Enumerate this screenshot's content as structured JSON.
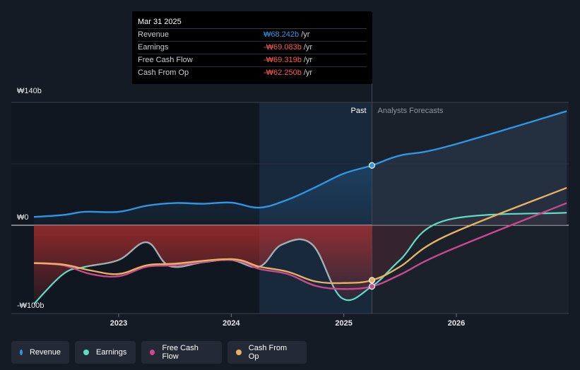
{
  "colors": {
    "revenue": "#2d96e6",
    "earnings": "#5fdcc6",
    "free_cash_flow": "#c84a8c",
    "cash_from_op": "#e8b063",
    "negative_value": "#ff5757",
    "revenue_value": "#2d96e6",
    "background": "#151b24"
  },
  "tooltip": {
    "date": "Mar 31 2025",
    "rows": [
      {
        "label": "Revenue",
        "value": "₩68.242b",
        "unit": "/yr",
        "series": "revenue"
      },
      {
        "label": "Earnings",
        "value": "-₩69.083b",
        "unit": "/yr",
        "series": "earnings"
      },
      {
        "label": "Free Cash Flow",
        "value": "-₩69.319b",
        "unit": "/yr",
        "series": "free_cash_flow"
      },
      {
        "label": "Cash From Op",
        "value": "-₩62.250b",
        "unit": "/yr",
        "series": "cash_from_op"
      }
    ]
  },
  "legend": {
    "items": [
      {
        "label": "Revenue",
        "series": "revenue"
      },
      {
        "label": "Earnings",
        "series": "earnings"
      },
      {
        "label": "Free Cash Flow",
        "series": "free_cash_flow"
      },
      {
        "label": "Cash From Op",
        "series": "cash_from_op"
      }
    ]
  },
  "chart_data": {
    "type": "line",
    "title": "",
    "xlabel": "",
    "ylabel": "",
    "y_tick_labels": [
      "₩140b",
      "₩0",
      "-₩100b"
    ],
    "y_ticks": [
      140,
      0,
      -100
    ],
    "ylim": [
      -100,
      140
    ],
    "xlim": [
      2022.2,
      2026.98
    ],
    "x_ticks": [
      2023,
      2024,
      2025,
      2026
    ],
    "x_tick_labels": [
      "2023",
      "2024",
      "2025",
      "2026"
    ],
    "past_label": "Past",
    "forecast_label": "Analysts Forecasts",
    "highlight_start": 2024.25,
    "divider_x": 2025.25,
    "series": [
      {
        "name": "Revenue",
        "key": "revenue",
        "points": [
          [
            2022.2,
            9.2
          ],
          [
            2022.5,
            11.6
          ],
          [
            2022.7,
            15.3
          ],
          [
            2023.0,
            15.3
          ],
          [
            2023.25,
            22.3
          ],
          [
            2023.5,
            25.3
          ],
          [
            2023.75,
            24.5
          ],
          [
            2024.0,
            25.8
          ],
          [
            2024.25,
            20.1
          ],
          [
            2024.5,
            29.1
          ],
          [
            2024.75,
            43.5
          ],
          [
            2025.0,
            58.9
          ],
          [
            2025.25,
            68.2
          ],
          [
            2025.5,
            79.5
          ],
          [
            2025.9,
            89.1
          ],
          [
            2026.98,
            130.0
          ]
        ]
      },
      {
        "name": "Earnings",
        "key": "earnings",
        "points": [
          [
            2022.2,
            -96.0
          ],
          [
            2022.5,
            -56.0
          ],
          [
            2022.7,
            -47.2
          ],
          [
            2023.0,
            -39.3
          ],
          [
            2023.25,
            -19.3
          ],
          [
            2023.45,
            -46.1
          ],
          [
            2023.75,
            -41.9
          ],
          [
            2024.0,
            -39.3
          ],
          [
            2024.25,
            -46.9
          ],
          [
            2024.45,
            -21.9
          ],
          [
            2024.72,
            -21.9
          ],
          [
            2024.98,
            -82.3
          ],
          [
            2025.25,
            -69.1
          ],
          [
            2025.5,
            -39.3
          ],
          [
            2025.9,
            5.4
          ],
          [
            2026.98,
            14.3
          ]
        ]
      },
      {
        "name": "Free Cash Flow",
        "key": "free_cash_flow",
        "points": [
          [
            2022.2,
            -42.7
          ],
          [
            2022.5,
            -45.3
          ],
          [
            2022.75,
            -55.2
          ],
          [
            2023.0,
            -57.7
          ],
          [
            2023.25,
            -47.0
          ],
          [
            2023.5,
            -45.3
          ],
          [
            2024.0,
            -39.3
          ],
          [
            2024.25,
            -49.5
          ],
          [
            2024.5,
            -55.2
          ],
          [
            2024.75,
            -68.7
          ],
          [
            2025.0,
            -72.2
          ],
          [
            2025.25,
            -69.3
          ],
          [
            2025.5,
            -56.0
          ],
          [
            2025.9,
            -30.4
          ],
          [
            2026.98,
            25.3
          ]
        ]
      },
      {
        "name": "Cash From Op",
        "key": "cash_from_op",
        "points": [
          [
            2022.2,
            -42.7
          ],
          [
            2022.5,
            -44.4
          ],
          [
            2022.75,
            -51.2
          ],
          [
            2023.0,
            -55.2
          ],
          [
            2023.25,
            -45.3
          ],
          [
            2023.5,
            -43.5
          ],
          [
            2024.0,
            -38.4
          ],
          [
            2024.25,
            -46.9
          ],
          [
            2024.5,
            -52.6
          ],
          [
            2024.75,
            -63.7
          ],
          [
            2025.0,
            -65.4
          ],
          [
            2025.25,
            -62.3
          ],
          [
            2025.5,
            -46.9
          ],
          [
            2025.9,
            -12.6
          ],
          [
            2026.98,
            42.7
          ]
        ]
      }
    ],
    "markers": [
      {
        "series": "revenue",
        "x": 2025.25,
        "y": 68.2
      },
      {
        "series": "cash_from_op",
        "x": 2025.25,
        "y": -62.3
      },
      {
        "series": "free_cash_flow",
        "x": 2025.25,
        "y": -69.3
      }
    ]
  }
}
